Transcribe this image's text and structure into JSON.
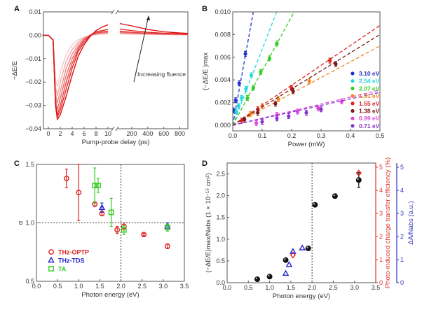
{
  "chart_data": [
    {
      "panel": "A",
      "type": "line",
      "xlabel": "Pump-probe delay (ps)",
      "ylabel": "−ΔE/E",
      "ylim": [
        -0.04,
        0.01
      ],
      "xbreak": true,
      "xticks": [
        "0",
        "2",
        "4",
        "6",
        "8",
        "10",
        "200",
        "400",
        "600",
        "800"
      ],
      "xtick_values": [
        0,
        2,
        4,
        6,
        8,
        10,
        200,
        400,
        600,
        800
      ],
      "yticks": [
        "0.01",
        "0.00",
        "−0.01",
        "−0.02",
        "−0.03",
        "−0.04"
      ],
      "ytick_values": [
        0.01,
        0,
        -0.01,
        -0.02,
        -0.03,
        -0.04
      ],
      "annotation": "Increasing fluence",
      "x": [
        -1,
        0,
        0.8,
        1.2,
        1.5,
        2,
        3,
        4,
        5,
        6,
        7,
        8,
        9,
        10,
        50,
        200,
        400,
        600,
        800,
        900
      ],
      "series": [
        {
          "color": "#f7c9c9",
          "values": [
            0,
            0,
            -0.002,
            -0.019,
            -0.022,
            -0.016,
            -0.008,
            -0.004,
            -0.002,
            -0.0008,
            0,
            0.0003,
            0.0005,
            0.0006,
            0.0006,
            0.0005,
            0.0004,
            0.0003,
            0.0002,
            0.0002
          ]
        },
        {
          "color": "#f2a8a8",
          "values": [
            0,
            0,
            -0.002,
            -0.022,
            -0.026,
            -0.02,
            -0.011,
            -0.006,
            -0.003,
            -0.001,
            0,
            0.0004,
            0.0007,
            0.0008,
            0.0008,
            0.0006,
            0.0005,
            0.0003,
            0.0003,
            0.0002
          ]
        },
        {
          "color": "#ee8a8a",
          "values": [
            0,
            0,
            -0.002,
            -0.025,
            -0.029,
            -0.024,
            -0.014,
            -0.008,
            -0.004,
            -0.0015,
            0,
            0.0006,
            0.001,
            0.0011,
            0.0011,
            0.0008,
            0.0006,
            0.0004,
            0.0003,
            0.0003
          ]
        },
        {
          "color": "#ea6a6a",
          "values": [
            0,
            0,
            -0.002,
            -0.027,
            -0.032,
            -0.027,
            -0.017,
            -0.01,
            -0.005,
            -0.002,
            0,
            0.0008,
            0.0012,
            0.0014,
            0.0014,
            0.001,
            0.0007,
            0.0005,
            0.0004,
            0.0003
          ]
        },
        {
          "color": "#e64545",
          "values": [
            0,
            0,
            -0.002,
            -0.029,
            -0.034,
            -0.03,
            -0.02,
            -0.012,
            -0.006,
            -0.002,
            0,
            0.001,
            0.0015,
            0.0018,
            0.0018,
            0.0013,
            0.0009,
            0.0007,
            0.0005,
            0.0004
          ]
        },
        {
          "color": "#e22a2a",
          "values": [
            0,
            0,
            -0.002,
            -0.03,
            -0.035,
            -0.032,
            -0.023,
            -0.014,
            -0.007,
            -0.003,
            0,
            0.0015,
            0.002,
            0.0025,
            0.0027,
            0.002,
            0.0013,
            0.0009,
            0.0006,
            0.0005
          ]
        },
        {
          "color": "#dd1111",
          "values": [
            0,
            0,
            -0.002,
            -0.03,
            -0.036,
            -0.034,
            -0.026,
            -0.017,
            -0.009,
            -0.004,
            -0.0005,
            0.002,
            0.0035,
            0.0045,
            0.005,
            0.004,
            0.0025,
            0.0015,
            0.001,
            0.0008
          ]
        }
      ]
    },
    {
      "panel": "B",
      "type": "scatter",
      "xlabel": "Power (mW)",
      "ylabel": "(−ΔE/E )max",
      "xlim": [
        0,
        0.5
      ],
      "ylim": [
        -0.0005,
        0.01
      ],
      "xticks": [
        "0.0",
        "0.1",
        "0.2",
        "0.3",
        "0.4",
        "0.5"
      ],
      "xtick_values": [
        0,
        0.1,
        0.2,
        0.3,
        0.4,
        0.5
      ],
      "yticks": [
        "0.000",
        "0.002",
        "0.004",
        "0.006",
        "0.008",
        "0.010"
      ],
      "ytick_values": [
        0,
        0.002,
        0.004,
        0.006,
        0.008,
        0.01
      ],
      "legend_position": "right",
      "series": [
        {
          "name": "3.10 eV",
          "color": "#2233cc",
          "slope": 0.143,
          "x": [
            0.003,
            0.01,
            0.022,
            0.043
          ],
          "y": [
            0.0013,
            0.0022,
            0.0037,
            0.0063
          ]
        },
        {
          "name": "2.54 eV",
          "color": "#22d8dd",
          "slope": 0.067,
          "x": [
            0.012,
            0.02,
            0.03,
            0.045,
            0.063
          ],
          "y": [
            0.0012,
            0.0017,
            0.0024,
            0.0032,
            0.0044
          ]
        },
        {
          "name": "2.07 eV",
          "color": "#33cc22",
          "slope": 0.048,
          "x": [
            0.05,
            0.07,
            0.095,
            0.125,
            0.15
          ],
          "y": [
            0.0024,
            0.0033,
            0.0047,
            0.0059,
            0.0072
          ]
        },
        {
          "name": "1.91 eV",
          "color": "#ee8822",
          "slope": 0.014,
          "x": [
            0.06,
            0.1,
            0.155,
            0.26
          ],
          "y": [
            0.001,
            0.0017,
            0.0023,
            0.0039
          ]
        },
        {
          "name": "1.55 eV",
          "color": "#dd2222",
          "slope": 0.0176,
          "x": [
            0.03,
            0.085,
            0.2,
            0.33
          ],
          "y": [
            0.0004,
            0.0014,
            0.0033,
            0.0057
          ]
        },
        {
          "name": "1.38 eV",
          "color": "#7a1a1a",
          "slope": 0.016,
          "x": [
            0.04,
            0.085,
            0.145,
            0.205,
            0.35
          ],
          "y": [
            0.0005,
            0.0011,
            0.0019,
            0.003,
            0.0054
          ]
        },
        {
          "name": "0.99 eV",
          "color": "#dd44dd",
          "slope": 0.0062,
          "x": [
            0.08,
            0.15,
            0.22,
            0.29,
            0.37
          ],
          "y": [
            0.0002,
            0.0009,
            0.0012,
            0.0015,
            0.0021
          ]
        },
        {
          "name": "0.71 eV",
          "color": "#8833cc",
          "slope": 0.0058,
          "x": [
            0.1,
            0.15,
            0.19,
            0.25,
            0.3
          ],
          "y": [
            0.0003,
            0.0006,
            0.0008,
            0.0011,
            0.0014
          ]
        }
      ]
    },
    {
      "panel": "C",
      "type": "scatter",
      "xlabel": "Photon energy (eV)",
      "ylabel": "α",
      "xlim": [
        0,
        3.5
      ],
      "ylim": [
        0.5,
        1.5
      ],
      "reference_lines": {
        "y": 1.0,
        "x": 2.0
      },
      "xticks": [
        "0.0",
        "0.5",
        "1.0",
        "1.5",
        "2.0",
        "2.5",
        "3.0",
        "3.5"
      ],
      "xtick_values": [
        0,
        0.5,
        1,
        1.5,
        2,
        2.5,
        3,
        3.5
      ],
      "yticks": [
        "0.5",
        "1.0",
        "1.5"
      ],
      "ytick_values": [
        0.5,
        1.0,
        1.5
      ],
      "legend_position": "bottom-left",
      "series": [
        {
          "name": "THz-OPTP",
          "color": "#dd2222",
          "marker": "circle",
          "x": [
            0.71,
            1.0,
            1.38,
            1.55,
            1.91,
            2.07,
            2.54,
            3.1
          ],
          "y": [
            1.38,
            1.26,
            1.16,
            1.08,
            0.94,
            0.97,
            0.9,
            0.8
          ],
          "yerr": [
            0.08,
            0.24,
            0.02,
            0.02,
            0.03,
            0.03,
            0.01,
            0.02
          ]
        },
        {
          "name": "THz-TDS",
          "color": "#2222cc",
          "marker": "triangle",
          "x": [
            1.55,
            3.1
          ],
          "y": [
            1.13,
            0.97
          ],
          "yerr": [
            0.04,
            0.03
          ]
        },
        {
          "name": "TA",
          "color": "#33cc22",
          "marker": "square",
          "x": [
            1.38,
            1.46,
            1.77,
            2.07,
            3.1
          ],
          "y": [
            1.32,
            1.32,
            1.09,
            0.94,
            0.96
          ],
          "yerr": [
            0.15,
            0.06,
            0.12,
            0.04,
            0.03
          ]
        }
      ]
    },
    {
      "panel": "D",
      "type": "scatter",
      "xlabel": "Photon energy (eV)",
      "ylabel": "(−ΔE/E)max/Nabs (1 × 10⁻¹⁵ cm²)",
      "ylabel_right1": "Photo-induced charge transfer efficiency (%)",
      "ylabel_right2": "ΔA/Nabs (a.u.)",
      "xlim": [
        0,
        3.5
      ],
      "ylim": [
        0,
        2.75
      ],
      "ylim_right1": [
        0,
        5
      ],
      "ylim_right2": [
        0,
        5
      ],
      "reference_lines": {
        "x": 2.0
      },
      "xticks": [
        "0.0",
        "0.5",
        "1.0",
        "1.5",
        "2.0",
        "2.5",
        "3.0",
        "3.5"
      ],
      "xtick_values": [
        0,
        0.5,
        1,
        1.5,
        2,
        2.5,
        3,
        3.5
      ],
      "yticks": [
        "0.0",
        "0.5",
        "1.0",
        "1.5",
        "2.0",
        "2.5"
      ],
      "ytick_values": [
        0,
        0.5,
        1,
        1.5,
        2,
        2.5
      ],
      "yticks_right": [
        "0",
        "1",
        "2",
        "3",
        "4",
        "5"
      ],
      "ytick_right_values": [
        0,
        1,
        2,
        3,
        4,
        5
      ],
      "series": [
        {
          "color": "#111111",
          "marker": "sphere",
          "axis": "left",
          "x": [
            0.71,
            1.0,
            1.38,
            1.91,
            2.07,
            2.54,
            3.1
          ],
          "y": [
            0.08,
            0.14,
            0.52,
            0.79,
            1.79,
            1.99,
            2.36
          ],
          "yerr": [
            0,
            0,
            0,
            0,
            0,
            0,
            0.17
          ]
        },
        {
          "color": "#dd2222",
          "marker": "diamond",
          "axis": "right1",
          "x": [
            1.55,
            3.1
          ],
          "y": [
            1.2,
            4.75
          ]
        },
        {
          "color": "#2222cc",
          "marker": "triangle",
          "axis": "right2",
          "x": [
            1.38,
            1.46,
            1.55,
            1.77
          ],
          "y": [
            0.4,
            0.78,
            1.35,
            1.5
          ]
        }
      ]
    }
  ]
}
